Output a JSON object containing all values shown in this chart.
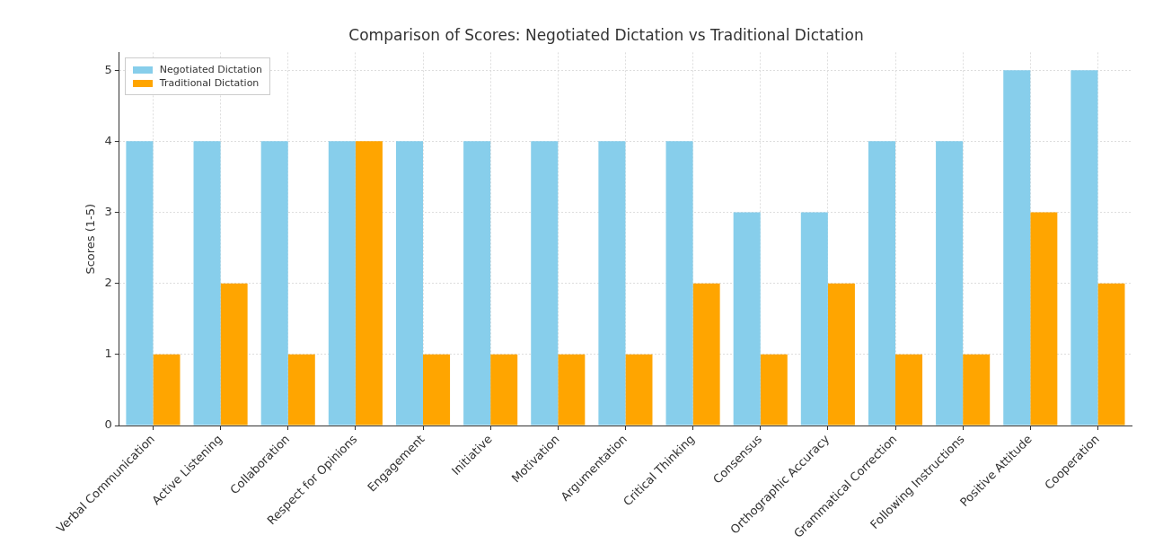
{
  "chart_data": {
    "type": "bar",
    "title": "Comparison of Scores: Negotiated Dictation vs Traditional Dictation",
    "ylabel": "Scores (1-5)",
    "categories": [
      "Verbal Communication",
      "Active Listening",
      "Collaboration",
      "Respect for Opinions",
      "Engagement",
      "Initiative",
      "Motivation",
      "Argumentation",
      "Critical Thinking",
      "Consensus",
      "Orthographic Accuracy",
      "Grammatical Correction",
      "Following Instructions",
      "Positive Attitude",
      "Cooperation"
    ],
    "series": [
      {
        "name": "Negotiated Dictation",
        "color": "#87ceeb",
        "values": [
          4,
          4,
          4,
          4,
          4,
          4,
          4,
          4,
          4,
          3,
          3,
          4,
          4,
          5,
          5
        ]
      },
      {
        "name": "Traditional Dictation",
        "color": "#ffa500",
        "values": [
          1,
          2,
          1,
          4,
          1,
          1,
          1,
          1,
          2,
          1,
          2,
          1,
          1,
          3,
          2
        ]
      }
    ],
    "ylim": [
      0,
      5.25
    ],
    "yticks": [
      0,
      1,
      2,
      3,
      4,
      5
    ],
    "grid": true,
    "legend": "top left"
  }
}
